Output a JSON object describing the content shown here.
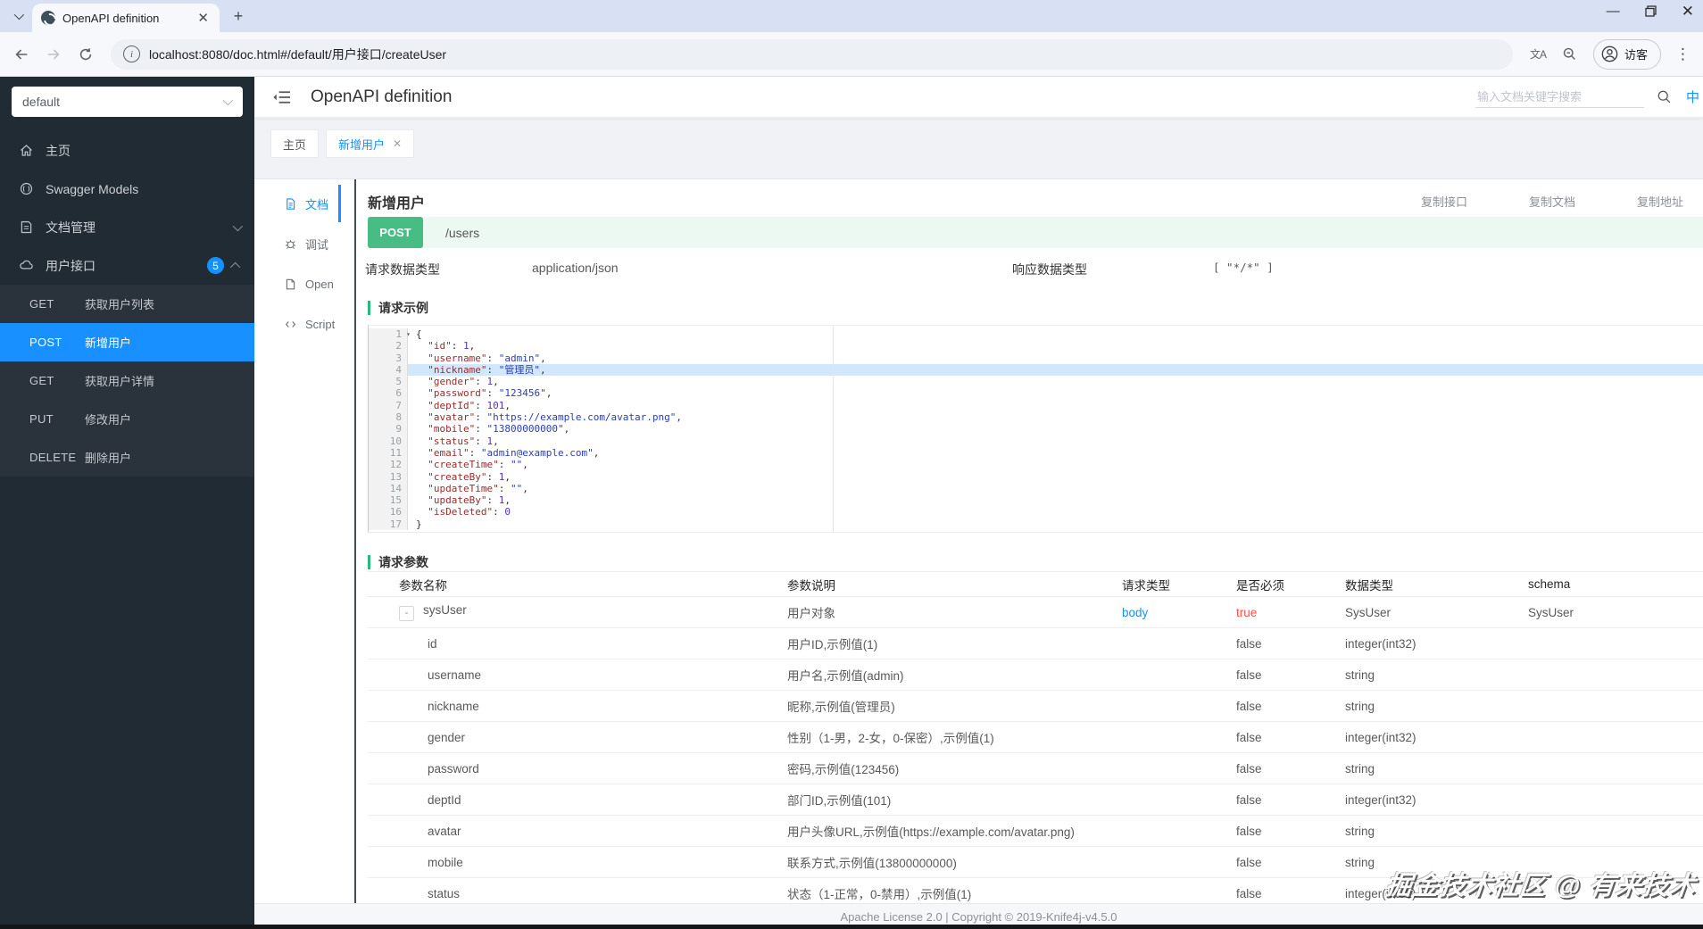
{
  "browser": {
    "tab_title": "OpenAPI definition",
    "url": "localhost:8080/doc.html#/default/用户接口/createUser",
    "profile_label": "访客",
    "translate_label": "文A"
  },
  "sidebar": {
    "group_select": "default",
    "items": [
      {
        "key": "home",
        "icon": "home-icon",
        "label": "主页"
      },
      {
        "key": "swagger-models",
        "icon": "swagger-icon",
        "label": "Swagger Models"
      },
      {
        "key": "doc-management",
        "icon": "doc-manage-icon",
        "label": "文档管理",
        "chevron": "down"
      },
      {
        "key": "user-api",
        "icon": "cloud-icon",
        "label": "用户接口",
        "badge": "5",
        "chevron": "up"
      }
    ],
    "api_items": [
      {
        "key": "get-user-list",
        "method": "GET",
        "label": "获取用户列表",
        "selected": false
      },
      {
        "key": "create-user",
        "method": "POST",
        "label": "新增用户",
        "selected": true
      },
      {
        "key": "get-user-detail",
        "method": "GET",
        "label": "获取用户详情",
        "selected": false
      },
      {
        "key": "update-user",
        "method": "PUT",
        "label": "修改用户",
        "selected": false
      },
      {
        "key": "delete-user",
        "method": "DELETE",
        "label": "删除用户",
        "selected": false
      }
    ]
  },
  "header": {
    "title": "OpenAPI definition",
    "search_placeholder": "输入文档关键字搜索",
    "lang_toggle": "中"
  },
  "tabs": [
    {
      "key": "home",
      "label": "主页",
      "active": false,
      "closable": false
    },
    {
      "key": "create-user",
      "label": "新增用户",
      "active": true,
      "closable": true
    }
  ],
  "doc_nav": [
    {
      "key": "doc",
      "icon": "doc-icon",
      "label": "文档",
      "active": true
    },
    {
      "key": "debug",
      "icon": "debug-icon",
      "label": "调试",
      "active": false
    },
    {
      "key": "open",
      "icon": "open-icon",
      "label": "Open",
      "active": false
    },
    {
      "key": "script",
      "icon": "script-icon",
      "label": "Script",
      "active": false
    }
  ],
  "api": {
    "title": "新增用户",
    "copy_links": [
      {
        "key": "copy-api",
        "label": "复制接口"
      },
      {
        "key": "copy-doc",
        "label": "复制文档"
      },
      {
        "key": "copy-url",
        "label": "复制地址"
      }
    ],
    "method": "POST",
    "path": "/users",
    "request_type_label": "请求数据类型",
    "request_type_value": "application/json",
    "response_type_label": "响应数据类型",
    "response_type_value": "[ \"*/*\" ]"
  },
  "request_example": {
    "title": "请求示例",
    "highlight_line": 4,
    "lines": [
      "{",
      "  \"id\": 1,",
      "  \"username\": \"admin\",",
      "  \"nickname\": \"管理员\",",
      "  \"gender\": 1,",
      "  \"password\": \"123456\",",
      "  \"deptId\": 101,",
      "  \"avatar\": \"https://example.com/avatar.png\",",
      "  \"mobile\": \"13800000000\",",
      "  \"status\": 1,",
      "  \"email\": \"admin@example.com\",",
      "  \"createTime\": \"\",",
      "  \"createBy\": 1,",
      "  \"updateTime\": \"\",",
      "  \"updateBy\": 1,",
      "  \"isDeleted\": 0",
      "}"
    ]
  },
  "request_params": {
    "title": "请求参数",
    "headers": [
      "参数名称",
      "参数说明",
      "请求类型",
      "是否必须",
      "数据类型",
      "schema"
    ],
    "rows": [
      {
        "name": "sysUser",
        "indent": 0,
        "collapsible": true,
        "desc": "用户对象",
        "req_type": "body",
        "required": "true",
        "data_type": "SysUser",
        "schema": "SysUser"
      },
      {
        "name": "id",
        "indent": 1,
        "desc": "用户ID,示例值(1)",
        "req_type": "",
        "required": "false",
        "data_type": "integer(int32)",
        "schema": ""
      },
      {
        "name": "username",
        "indent": 1,
        "desc": "用户名,示例值(admin)",
        "req_type": "",
        "required": "false",
        "data_type": "string",
        "schema": ""
      },
      {
        "name": "nickname",
        "indent": 1,
        "desc": "昵称,示例值(管理员)",
        "req_type": "",
        "required": "false",
        "data_type": "string",
        "schema": ""
      },
      {
        "name": "gender",
        "indent": 1,
        "desc": "性别（1-男，2-女，0-保密）,示例值(1)",
        "req_type": "",
        "required": "false",
        "data_type": "integer(int32)",
        "schema": ""
      },
      {
        "name": "password",
        "indent": 1,
        "desc": "密码,示例值(123456)",
        "req_type": "",
        "required": "false",
        "data_type": "string",
        "schema": ""
      },
      {
        "name": "deptId",
        "indent": 1,
        "desc": "部门ID,示例值(101)",
        "req_type": "",
        "required": "false",
        "data_type": "integer(int32)",
        "schema": ""
      },
      {
        "name": "avatar",
        "indent": 1,
        "desc": "用户头像URL,示例值(https://example.com/avatar.png)",
        "req_type": "",
        "required": "false",
        "data_type": "string",
        "schema": ""
      },
      {
        "name": "mobile",
        "indent": 1,
        "desc": "联系方式,示例值(13800000000)",
        "req_type": "",
        "required": "false",
        "data_type": "string",
        "schema": ""
      },
      {
        "name": "status",
        "indent": 1,
        "desc": "状态（1-正常，0-禁用）,示例值(1)",
        "req_type": "",
        "required": "false",
        "data_type": "integer(int32)",
        "schema": ""
      }
    ]
  },
  "footer": {
    "license": "Apache License 2.0 | Copyright © 2019-Knife4j-v4.5.0"
  },
  "watermark": "掘金技术社区 @ 有来技术",
  "colors": {
    "accent": "#1890ff",
    "method_green": "#48bc85",
    "required_red": "#ff4d4f",
    "section_bar": "#2bb87a",
    "sidebar_bg": "#212b33",
    "highlight_line_bg": "#d2e7fb"
  }
}
